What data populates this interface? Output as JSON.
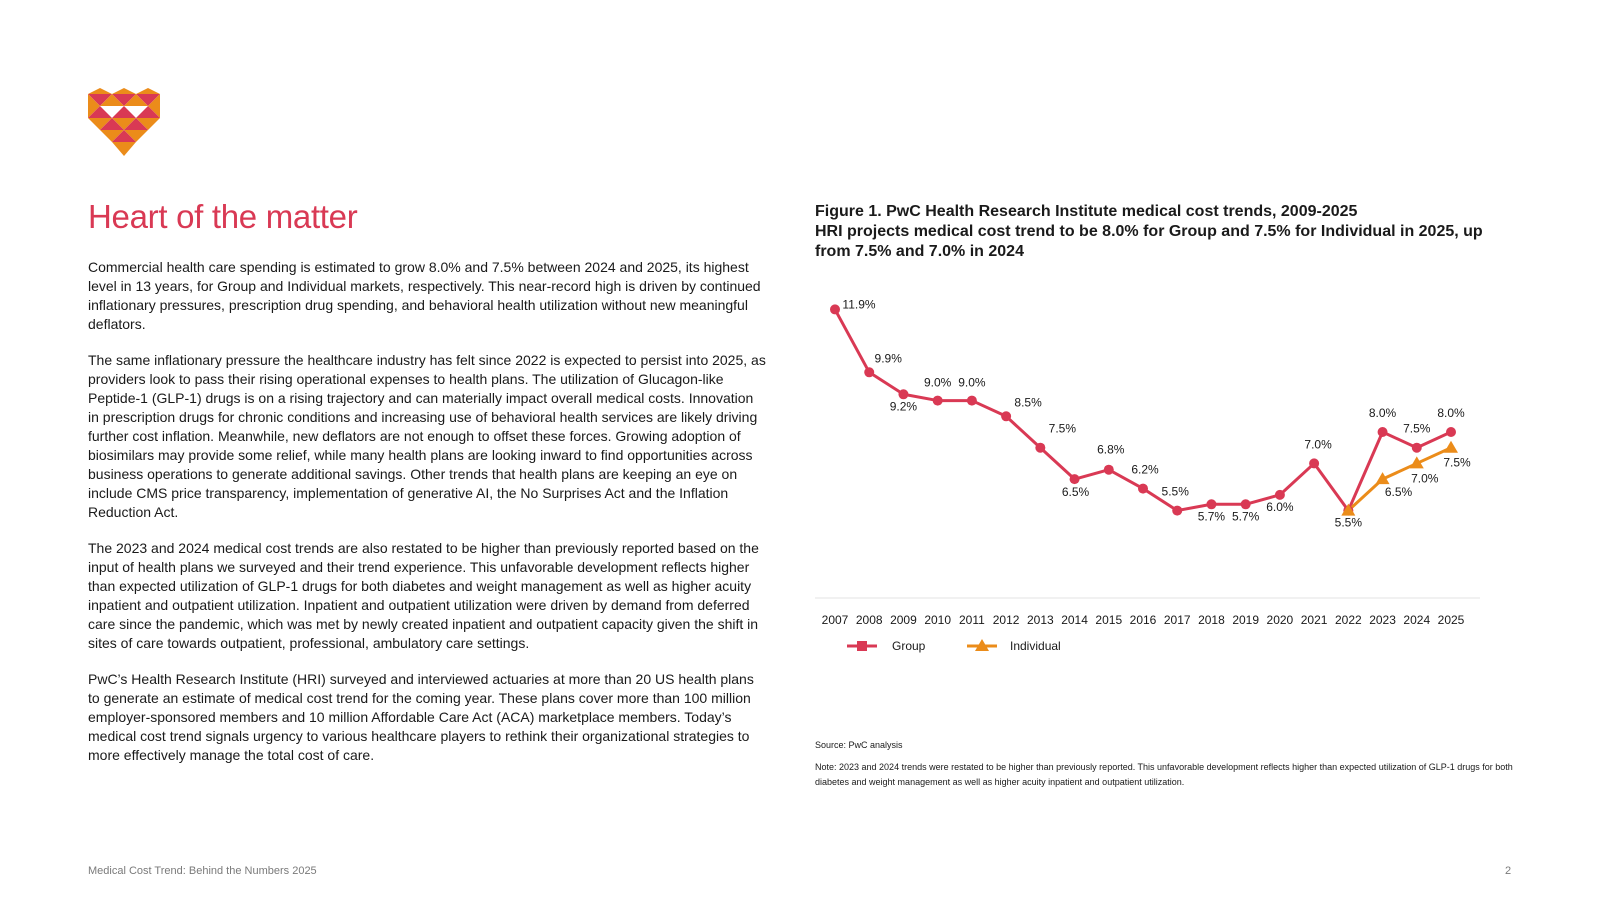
{
  "page": {
    "heading": "Heart of the matter",
    "paragraphs": [
      "Commercial health care spending is estimated to grow 8.0% and 7.5% between 2024 and 2025, its highest level in 13 years, for Group and Individual markets, respectively. This near-record high is driven by continued inflationary pressures, prescription drug spending, and behavioral health utilization without new meaningful deflators.",
      "The same inflationary pressure the healthcare industry has felt since 2022 is expected to persist into 2025, as providers look to pass their rising operational expenses to health plans. The utilization of Glucagon-like Peptide-1 (GLP-1) drugs is on a rising trajectory and can materially impact overall medical costs. Innovation in prescription drugs for chronic conditions and increasing use of behavioral health services are likely driving further cost inflation. Meanwhile, new deflators are not enough to offset these forces. Growing adoption of biosimilars may provide some relief, while many health plans are looking inward to find opportunities across business operations to generate additional savings. Other trends that health plans are keeping an eye on include CMS price transparency, implementation of generative AI, the No Surprises Act and the Inflation Reduction Act.",
      "The 2023 and 2024 medical cost trends are also restated to be higher than previously reported based on the input of health plans we surveyed and their trend experience. This unfavorable development reflects higher than expected utilization of GLP-1 drugs for both diabetes and weight management as well as higher acuity inpatient and outpatient utilization. Inpatient and outpatient utilization were driven by demand from deferred care since the pandemic, which was met by newly created inpatient and outpatient capacity given the shift in sites of care towards outpatient, professional, ambulatory care settings.",
      "PwC’s Health Research Institute (HRI) surveyed and interviewed actuaries at more than 20 US health plans to generate an estimate of medical cost trend for the coming year. These plans cover more than 100 million employer-sponsored members and 10 million Affordable Care Act (ACA) marketplace members. Today’s medical cost trend signals urgency to various healthcare players to rethink their organizational strategies to more effectively manage the total cost of care."
    ],
    "figure_title_line1": "Figure 1. PwC Health Research Institute medical cost trends, 2009-2025",
    "figure_title_line2": "HRI projects medical cost trend to be 8.0% for Group and 7.5% for Individual in 2025, up from 7.5% and 7.0% in 2024",
    "source": "Source: PwC analysis",
    "note": "Note: 2023 and 2024 trends were restated to be higher than previously reported. This unfavorable development reflects higher than expected utilization of GLP-1 drugs for both diabetes and weight management as well as higher acuity inpatient and outpatient utilization.",
    "footer_left": "Medical Cost Trend: Behind the Numbers 2025",
    "footer_right": "2"
  },
  "colors": {
    "accent": "#d93954",
    "group": "#d93954",
    "individual": "#eb8c1a",
    "logo_orange": "#eb8c1a",
    "logo_red": "#d93954"
  },
  "chart_data": {
    "type": "line",
    "categories": [
      "2007",
      "2008",
      "2009",
      "2010",
      "2011",
      "2012",
      "2013",
      "2014",
      "2015",
      "2016",
      "2017",
      "2018",
      "2019",
      "2020",
      "2021",
      "2022",
      "2023",
      "2024",
      "2025"
    ],
    "series": [
      {
        "name": "Group",
        "color": "#d93954",
        "marker": "circle",
        "x": [
          "2007",
          "2008",
          "2009",
          "2010",
          "2011",
          "2012",
          "2013",
          "2014",
          "2015",
          "2016",
          "2017",
          "2018",
          "2019",
          "2020",
          "2021",
          "2022",
          "2023",
          "2024",
          "2025"
        ],
        "values": [
          11.9,
          9.9,
          9.2,
          9.0,
          9.0,
          8.5,
          7.5,
          6.5,
          6.8,
          6.2,
          5.5,
          5.7,
          5.7,
          6.0,
          7.0,
          5.5,
          8.0,
          7.5,
          8.0
        ],
        "labels": [
          "11.9%",
          "9.9%",
          "9.2%",
          "9.0%",
          "9.0%",
          "8.5%",
          "7.5%",
          "6.5%",
          "6.8%",
          "6.2%",
          "5.5%",
          "5.7%",
          "5.7%",
          "6.0%",
          "7.0%",
          "5.5%",
          "8.0%",
          "7.5%",
          "8.0%"
        ]
      },
      {
        "name": "Individual",
        "color": "#eb8c1a",
        "marker": "triangle",
        "x": [
          "2022",
          "2023",
          "2024",
          "2025"
        ],
        "values": [
          5.5,
          6.5,
          7.0,
          7.5
        ],
        "labels": [
          "",
          "6.5%",
          "7.0%",
          "7.5%"
        ]
      }
    ],
    "ylim": [
      4.5,
      12.2
    ],
    "grid": false,
    "legend_position": "bottom-left"
  }
}
